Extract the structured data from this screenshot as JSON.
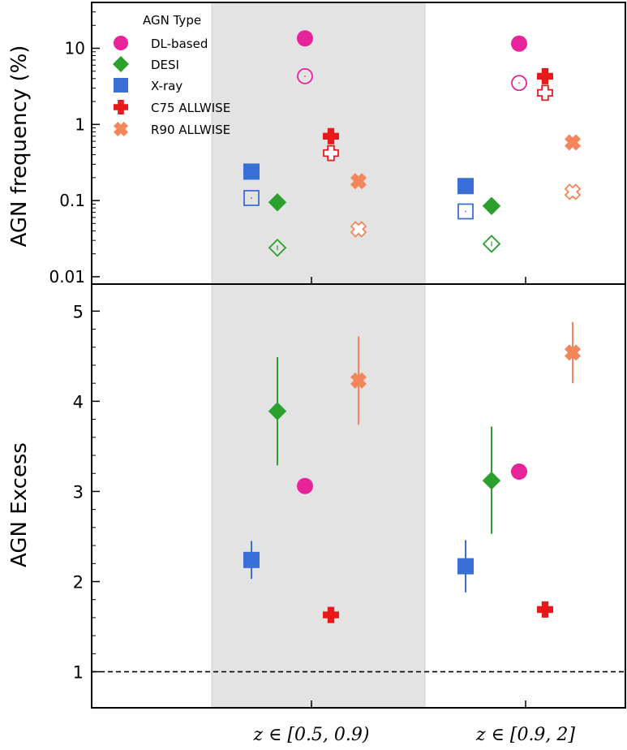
{
  "chart_data": [
    {
      "type": "scatter",
      "panel": "top",
      "ylabel": "AGN frequency (%)",
      "yscale": "log",
      "ylim": [
        0.008,
        40
      ],
      "yticks": [
        "0.01",
        "0.1",
        "1",
        "10"
      ],
      "categories": [
        "z ∈ [0.5, 0.9)",
        "z ∈ [0.9, 2]"
      ],
      "legend": {
        "title": "AGN Type",
        "placement": "top-left"
      },
      "series": [
        {
          "name": "DL-based",
          "color": "#e8249a",
          "marker": "circle",
          "filled": [
            13.5,
            11.5
          ],
          "open": [
            4.3,
            3.5
          ]
        },
        {
          "name": "DESI",
          "color": "#2ca02c",
          "marker": "diamond",
          "filled": [
            0.095,
            0.085
          ],
          "open": [
            0.024,
            0.027
          ]
        },
        {
          "name": "X-ray",
          "color": "#3b6fd8",
          "marker": "square",
          "filled": [
            0.24,
            0.155
          ],
          "open": [
            0.108,
            0.072
          ]
        },
        {
          "name": "C75 ALLWISE",
          "color": "#e8191a",
          "marker": "plus",
          "filled": [
            0.7,
            4.3
          ],
          "open": [
            0.42,
            2.6
          ]
        },
        {
          "name": "R90 ALLWISE",
          "color": "#f5855a",
          "marker": "x",
          "filled": [
            0.18,
            0.58
          ],
          "open": [
            0.042,
            0.13
          ]
        }
      ]
    },
    {
      "type": "scatter",
      "panel": "bottom",
      "ylabel": "AGN Excess",
      "ylim": [
        0.6,
        5.3
      ],
      "yticks": [
        "1",
        "2",
        "3",
        "4",
        "5"
      ],
      "reference_line": 1,
      "shaded_region": "z ∈ [0.5, 0.9)",
      "series": [
        {
          "name": "DL-based",
          "values": [
            3.06,
            3.22
          ],
          "err": [
            null,
            null
          ]
        },
        {
          "name": "DESI",
          "values": [
            3.89,
            3.12
          ],
          "err": [
            [
              3.29,
              4.49
            ],
            [
              2.53,
              3.72
            ]
          ]
        },
        {
          "name": "X-ray",
          "values": [
            2.24,
            2.17
          ],
          "err": [
            [
              2.03,
              2.45
            ],
            [
              1.88,
              2.46
            ]
          ]
        },
        {
          "name": "C75 ALLWISE",
          "values": [
            1.63,
            1.69
          ],
          "err": [
            null,
            null
          ]
        },
        {
          "name": "R90 ALLWISE",
          "values": [
            4.23,
            4.54
          ],
          "err": [
            [
              3.74,
              4.72
            ],
            [
              4.2,
              4.88
            ]
          ]
        }
      ]
    }
  ],
  "labels": {
    "top_ylabel": "AGN frequency (%)",
    "bottom_ylabel": "AGN Excess",
    "legend_title": "AGN Type",
    "legend_items": [
      "DL-based",
      "DESI",
      "X-ray",
      "C75 ALLWISE",
      "R90 ALLWISE"
    ],
    "x_categories": [
      "z ∈ [0.5, 0.9)",
      "z ∈ [0.9, 2]"
    ]
  },
  "colors": {
    "shade": "#e3e3e3",
    "shade_edge": "#cfcfcf",
    "axis": "#000000"
  }
}
